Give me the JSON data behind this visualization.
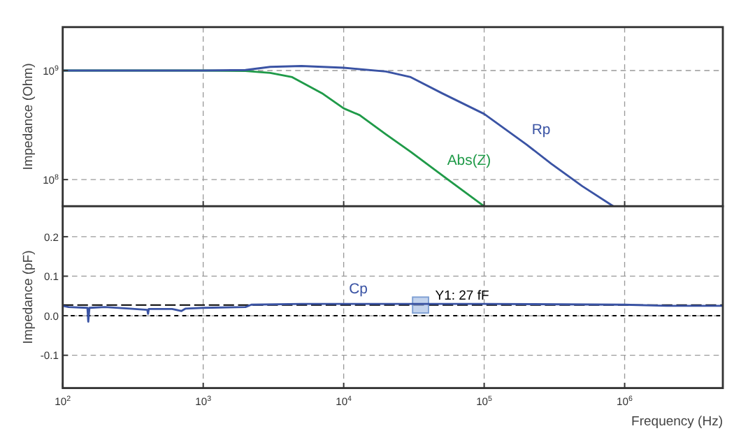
{
  "chart_data": [
    {
      "type": "line",
      "ylabel": "Impedance (Ohm)",
      "log": "xy",
      "grid": true,
      "tick_labels": "y",
      "xlim": [
        100,
        5000000
      ],
      "xticks": [
        {
          "value": 100,
          "label": null
        },
        {
          "value": 1000,
          "label": null
        },
        {
          "value": 10000,
          "label": null
        },
        {
          "value": 100000,
          "label": null
        },
        {
          "value": 1000000,
          "label": null
        }
      ],
      "ylim": [
        57000000,
        2500000000
      ],
      "yticks": [
        {
          "value": 100000000,
          "label": "10$^{8}$"
        },
        {
          "value": 1000000000,
          "label": "10$^{9}$"
        }
      ],
      "series": [
        {
          "name": "Abs(Z)",
          "color": "#1f9a48",
          "x": [
            100,
            1000,
            2000,
            3000,
            4300,
            7000,
            10000,
            13000,
            20000,
            30000,
            50000,
            70000,
            100000
          ],
          "values": [
            1000000000,
            1000000000,
            990000000,
            950000000,
            870000000,
            620000000,
            450000000,
            390000000,
            260000000,
            180000000,
            110000000,
            80000000,
            57000000
          ]
        },
        {
          "name": "Rp",
          "color": "#3a53a4",
          "x": [
            100,
            1000,
            2000,
            3000,
            5000,
            10000,
            20000,
            30000,
            50000,
            100000,
            200000,
            300000,
            500000,
            830000
          ],
          "values": [
            1000000000,
            1000000000,
            1010000000,
            1080000000,
            1100000000,
            1060000000,
            980000000,
            870000000,
            620000000,
            400000000,
            210000000,
            140000000,
            87000000,
            57000000
          ]
        }
      ]
    },
    {
      "type": "line",
      "ylabel": "Impedance (pF)",
      "xlabel": "Frequency (Hz)",
      "log": "x",
      "grid": true,
      "xlim": [
        100,
        5000000
      ],
      "xticks": [
        {
          "value": 100,
          "label": "10$^{2}$"
        },
        {
          "value": 1000,
          "label": "10$^{3}$"
        },
        {
          "value": 10000,
          "label": "10$^{4}$"
        },
        {
          "value": 100000,
          "label": "10$^{5}$"
        },
        {
          "value": 1000000,
          "label": "10$^{6}$"
        }
      ],
      "ylim": [
        -0.183,
        0.277
      ],
      "yticks": [
        {
          "value": -0.1,
          "label": "-0.1"
        },
        {
          "value": 0,
          "label": "0.0"
        },
        {
          "value": 0.1,
          "label": "0.1"
        },
        {
          "value": 0.2,
          "label": "0.2"
        }
      ],
      "ref_lines": [
        {
          "axis": "y",
          "value": 0.027,
          "label": "Y1: 27 fF",
          "color": "#000000",
          "line_style": "dashed"
        },
        {
          "axis": "y",
          "value": 0,
          "color": "#000000",
          "line_style": "dotted"
        }
      ],
      "series": [
        {
          "name": "Cp",
          "color": "#3a53a4",
          "x": [
            100,
            110,
            150,
            152,
            155,
            200,
            300,
            400,
            405,
            410,
            600,
            700,
            750,
            1000,
            2000,
            2200,
            5000,
            10000,
            30000,
            100000,
            1000000,
            2000000,
            5000000
          ],
          "values": [
            0.025,
            0.022,
            0.02,
            -0.015,
            0.02,
            0.022,
            0.018,
            0.015,
            0.005,
            0.017,
            0.017,
            0.012,
            0.018,
            0.02,
            0.022,
            0.028,
            0.03,
            0.03,
            0.03,
            0.03,
            0.028,
            0.025,
            0.025
          ]
        }
      ]
    }
  ]
}
